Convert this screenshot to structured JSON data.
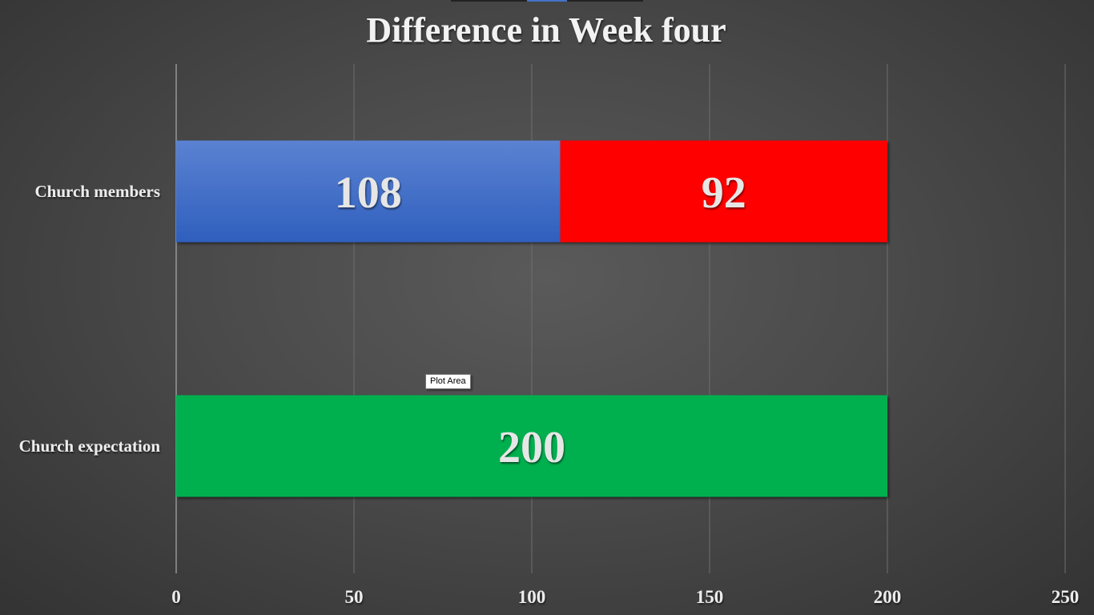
{
  "chart_data": {
    "type": "bar",
    "orientation": "horizontal",
    "stacked": true,
    "title": "Difference in Week four",
    "categories": [
      "Church members",
      "Church expectation"
    ],
    "series": [
      {
        "values": [
          108,
          null
        ],
        "color": "#4472c4"
      },
      {
        "values": [
          92,
          null
        ],
        "color": "#ff0000"
      },
      {
        "values": [
          null,
          200
        ],
        "color": "#00b050"
      }
    ],
    "xlim": [
      0,
      250
    ],
    "x_ticks": [
      0,
      50,
      100,
      150,
      200,
      250
    ],
    "grid": true,
    "legend": "none"
  },
  "tooltip": {
    "text": "Plot Area"
  }
}
